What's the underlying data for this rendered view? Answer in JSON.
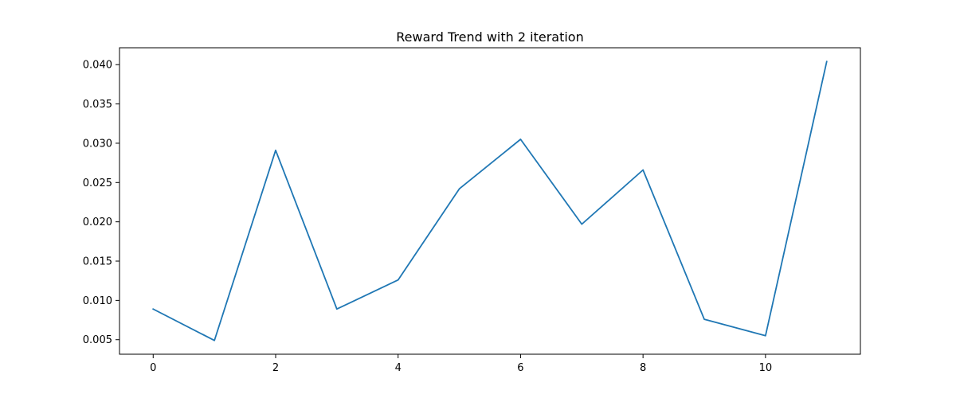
{
  "chart_data": {
    "type": "line",
    "title": "Reward Trend with 2 iteration",
    "xlabel": "",
    "ylabel": "",
    "x": [
      0,
      1,
      2,
      3,
      4,
      5,
      6,
      7,
      8,
      9,
      10,
      11
    ],
    "series": [
      {
        "values": [
          0.0089,
          0.0049,
          0.0291,
          0.0089,
          0.0126,
          0.0242,
          0.0305,
          0.0197,
          0.0266,
          0.0076,
          0.0055,
          0.0404
        ]
      }
    ],
    "xlim": [
      -0.55,
      11.55
    ],
    "ylim": [
      0.00315,
      0.04215
    ],
    "x_ticks": [
      0,
      2,
      4,
      6,
      8,
      10
    ],
    "x_tick_labels": [
      "0",
      "2",
      "4",
      "6",
      "8",
      "10"
    ],
    "y_ticks": [
      0.005,
      0.01,
      0.015,
      0.02,
      0.025,
      0.03,
      0.035,
      0.04
    ],
    "y_tick_labels": [
      "0.005",
      "0.010",
      "0.015",
      "0.020",
      "0.025",
      "0.030",
      "0.035",
      "0.040"
    ],
    "grid": false,
    "line_color": "#1f77b4"
  }
}
